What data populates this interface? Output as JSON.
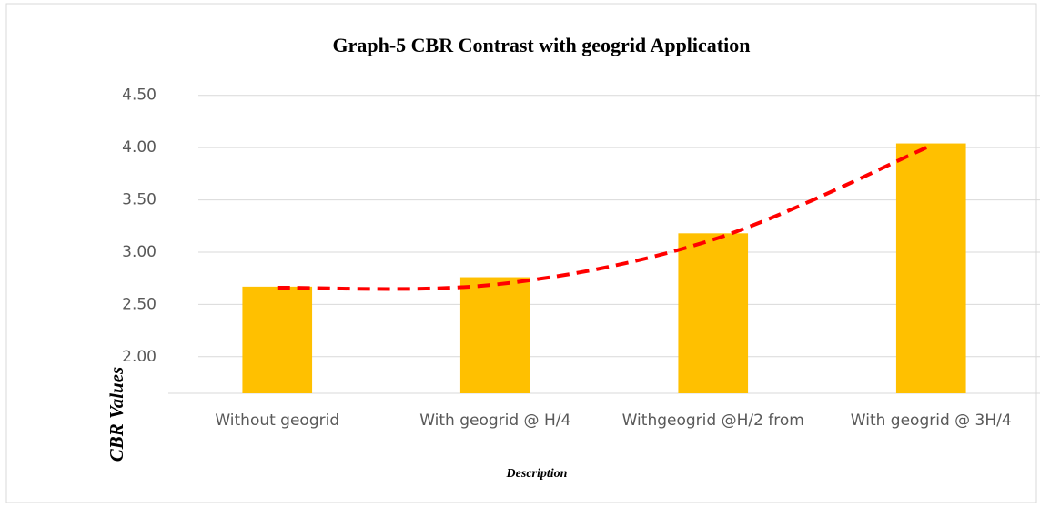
{
  "chart_data": {
    "type": "bar",
    "title": "Graph-5 CBR Contrast with geogrid Application",
    "categories": [
      "Without geogrid",
      "With geogrid @ H/4",
      "Withgeogrid @H/2 from",
      "With geogrid @ 3H/4"
    ],
    "values": [
      2.67,
      2.76,
      3.18,
      4.04
    ],
    "color": "#ffc000",
    "trendline": {
      "color": "#ff0000",
      "values": [
        2.66,
        2.69,
        3.12,
        4.02
      ]
    },
    "xlabel": "Description",
    "ylabel": "CBR Values",
    "ylim": [
      1.65,
      4.55
    ],
    "yticks": [
      {
        "value": 2.0,
        "label": "2.00"
      },
      {
        "value": 2.5,
        "label": "2.50"
      },
      {
        "value": 3.0,
        "label": "3.00"
      },
      {
        "value": 3.5,
        "label": "3.50"
      },
      {
        "value": 4.0,
        "label": "4.00"
      },
      {
        "value": 4.5,
        "label": "4.50"
      }
    ],
    "grid": true
  }
}
